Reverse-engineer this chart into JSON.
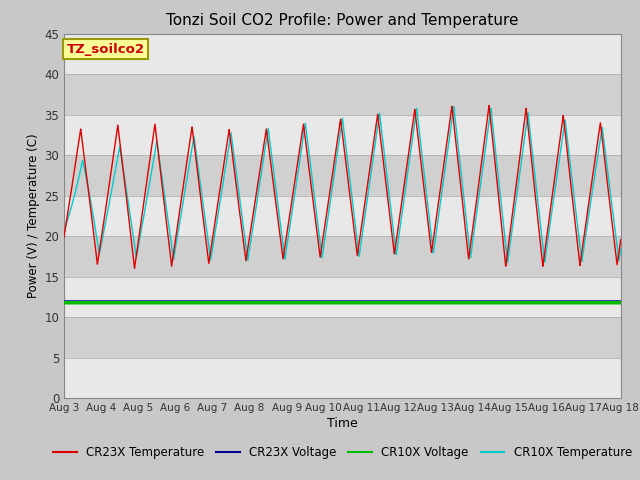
{
  "title": "Tonzi Soil CO2 Profile: Power and Temperature",
  "xlabel": "Time",
  "ylabel": "Power (V) / Temperature (C)",
  "ylim": [
    0,
    45
  ],
  "xlim_days": [
    0,
    15
  ],
  "x_tick_labels": [
    "Aug 3",
    "Aug 4",
    "Aug 5",
    "Aug 6",
    "Aug 7",
    "Aug 8",
    "Aug 9",
    "Aug 10",
    "Aug 11",
    "Aug 12",
    "Aug 13",
    "Aug 14",
    "Aug 15",
    "Aug 16",
    "Aug 17",
    "Aug 18"
  ],
  "annotation_label": "TZ_soilco2",
  "annotation_color": "#cc0000",
  "annotation_bg": "#ffff99",
  "annotation_border": "#999900",
  "cr23x_temp_color": "#dd0000",
  "cr23x_volt_color": "#000099",
  "cr10x_volt_color": "#00bb00",
  "cr10x_temp_color": "#00cccc",
  "cr23x_volt_value": 12.0,
  "cr10x_volt_value": 11.8,
  "plot_bg_color": "#d8d8d8",
  "band_color_light": "#e8e8e8",
  "band_color_dark": "#d0d0d0",
  "legend_labels": [
    "CR23X Temperature",
    "CR23X Voltage",
    "CR10X Voltage",
    "CR10X Temperature"
  ],
  "figsize": [
    6.4,
    4.8
  ],
  "dpi": 100
}
